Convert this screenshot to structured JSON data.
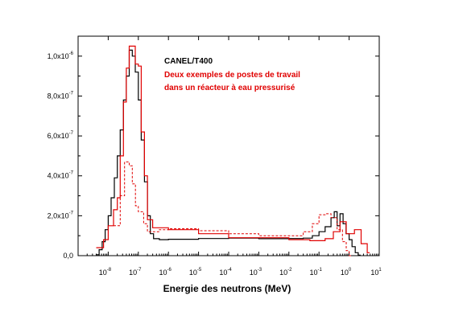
{
  "chart_data": {
    "type": "line",
    "xlabel": "Energie des neutrons (MeV)",
    "ylabel": "",
    "x_scale": "log",
    "xlim": [
      1e-09,
      10.0
    ],
    "ylim": [
      0,
      1.1e-06
    ],
    "grid": false,
    "legend_position": "top-right",
    "title": "CANEL/T400",
    "subtitle_lines": [
      "Deux exemples de postes de travail",
      "dans un réacteur à eau pressurisé"
    ],
    "colors": {
      "black": "#000000",
      "red": "#e00000",
      "red_dashed": "#e00000"
    },
    "x_ticks": [
      {
        "base": "10",
        "exp": "-8",
        "value": 1e-08
      },
      {
        "base": "10",
        "exp": "-7",
        "value": 1e-07
      },
      {
        "base": "10",
        "exp": "-6",
        "value": 1e-06
      },
      {
        "base": "10",
        "exp": "-5",
        "value": 1e-05
      },
      {
        "base": "10",
        "exp": "-4",
        "value": 0.0001
      },
      {
        "base": "10",
        "exp": "-3",
        "value": 0.001
      },
      {
        "base": "10",
        "exp": "-2",
        "value": 0.01
      },
      {
        "base": "10",
        "exp": "-1",
        "value": 0.1
      },
      {
        "base": "10",
        "exp": "0",
        "value": 1
      },
      {
        "base": "10",
        "exp": "1",
        "value": 10
      }
    ],
    "y_ticks": [
      {
        "mant": "0,0",
        "exp": "",
        "value": 0
      },
      {
        "mant": "2,0x10",
        "exp": "-7",
        "value": 2e-07
      },
      {
        "mant": "4,0x10",
        "exp": "-7",
        "value": 4e-07
      },
      {
        "mant": "6,0x10",
        "exp": "-7",
        "value": 6e-07
      },
      {
        "mant": "8,0x10",
        "exp": "-7",
        "value": 8e-07
      },
      {
        "mant": "1,0x10",
        "exp": "-6",
        "value": 1e-06
      }
    ],
    "series": [
      {
        "style": "solid",
        "color": "#000000",
        "points": [
          [
            4e-09,
            5e-09
          ],
          [
            5e-09,
            3e-08
          ],
          [
            6.3e-09,
            7e-08
          ],
          [
            7.9e-09,
            1.3e-07
          ],
          [
            1e-08,
            2e-07
          ],
          [
            1.25e-08,
            2.9e-07
          ],
          [
            1.6e-08,
            3.9e-07
          ],
          [
            2e-08,
            5e-07
          ],
          [
            2.5e-08,
            6.3e-07
          ],
          [
            3.2e-08,
            7.8e-07
          ],
          [
            4e-08,
            9e-07
          ],
          [
            5e-08,
            1.03e-06
          ],
          [
            6.3e-08,
            1e-06
          ],
          [
            7.9e-08,
            9.2e-07
          ],
          [
            1e-07,
            7.8e-07
          ],
          [
            1.25e-07,
            5.8e-07
          ],
          [
            1.6e-07,
            3.7e-07
          ],
          [
            2e-07,
            2e-07
          ],
          [
            2.5e-07,
            1.1e-07
          ],
          [
            3.2e-07,
            8.5e-08
          ],
          [
            5e-07,
            8e-08
          ],
          [
            1e-06,
            8.2e-08
          ],
          [
            1e-05,
            8.6e-08
          ],
          [
            0.0001,
            8.8e-08
          ],
          [
            0.001,
            8.5e-08
          ],
          [
            0.01,
            8.6e-08
          ],
          [
            0.03,
            8.8e-08
          ],
          [
            0.06,
            1e-07
          ],
          [
            0.1,
            1.2e-07
          ],
          [
            0.16,
            1.45e-07
          ],
          [
            0.25,
            1.9e-07
          ],
          [
            0.32,
            2.2e-07
          ],
          [
            0.4,
            1.5e-07
          ],
          [
            0.5,
            2.1e-07
          ],
          [
            0.63,
            1.6e-07
          ],
          [
            0.79,
            1.1e-07
          ],
          [
            1.0,
            8e-08
          ],
          [
            1.25,
            4.5e-08
          ],
          [
            1.6,
            1.5e-08
          ],
          [
            2.0,
            3e-09
          ]
        ]
      },
      {
        "style": "solid",
        "color": "#e00000",
        "points": [
          [
            4e-09,
            4e-08
          ],
          [
            7e-09,
            8e-08
          ],
          [
            1e-08,
            1.5e-07
          ],
          [
            1.5e-08,
            2.3e-07
          ],
          [
            2e-08,
            2.9e-07
          ],
          [
            2.5e-08,
            5e-07
          ],
          [
            3.2e-08,
            7.7e-07
          ],
          [
            4e-08,
            9.4e-07
          ],
          [
            5e-08,
            1.05e-06
          ],
          [
            6.3e-08,
            1.05e-06
          ],
          [
            7.9e-08,
            9.6e-07
          ],
          [
            1e-07,
            9.5e-07
          ],
          [
            1.25e-07,
            6.2e-07
          ],
          [
            1.6e-07,
            4e-07
          ],
          [
            2e-07,
            1.8e-07
          ],
          [
            3e-07,
            1.4e-07
          ],
          [
            1e-06,
            1.3e-07
          ],
          [
            1e-05,
            1.1e-07
          ],
          [
            0.0001,
            9e-08
          ],
          [
            0.001,
            9e-08
          ],
          [
            0.01,
            8e-08
          ],
          [
            0.05,
            7.5e-08
          ],
          [
            0.16,
            8.5e-08
          ],
          [
            0.3,
            1.2e-07
          ],
          [
            0.5,
            1.7e-07
          ],
          [
            0.8,
            1.1e-07
          ],
          [
            1.5,
            1.3e-07
          ],
          [
            2.5,
            6e-08
          ],
          [
            4.0,
            1.5e-08
          ]
        ]
      },
      {
        "style": "dashed",
        "color": "#e00000",
        "points": [
          [
            1.5e-08,
            1.5e-07
          ],
          [
            2.5e-08,
            3e-07
          ],
          [
            3.5e-08,
            4.7e-07
          ],
          [
            5e-08,
            4.5e-07
          ],
          [
            6.3e-08,
            3.6e-07
          ],
          [
            8e-08,
            2.5e-07
          ],
          [
            1e-07,
            2.2e-07
          ],
          [
            1.5e-07,
            1.6e-07
          ],
          [
            2e-07,
            1.2e-07
          ],
          [
            5e-07,
            1.3e-07
          ],
          [
            1e-06,
            1.35e-07
          ],
          [
            1e-05,
            1.25e-07
          ],
          [
            0.0001,
            1.1e-07
          ],
          [
            0.001,
            1e-07
          ],
          [
            0.01,
            1e-07
          ],
          [
            0.03,
            1.2e-07
          ],
          [
            0.06,
            1.6e-07
          ],
          [
            0.1,
            2.05e-07
          ],
          [
            0.16,
            2.1e-07
          ],
          [
            0.25,
            1.9e-07
          ],
          [
            0.4,
            1.3e-07
          ],
          [
            0.6,
            7e-08
          ],
          [
            0.8,
            2.5e-08
          ],
          [
            1.0,
            0.0
          ]
        ]
      }
    ]
  }
}
